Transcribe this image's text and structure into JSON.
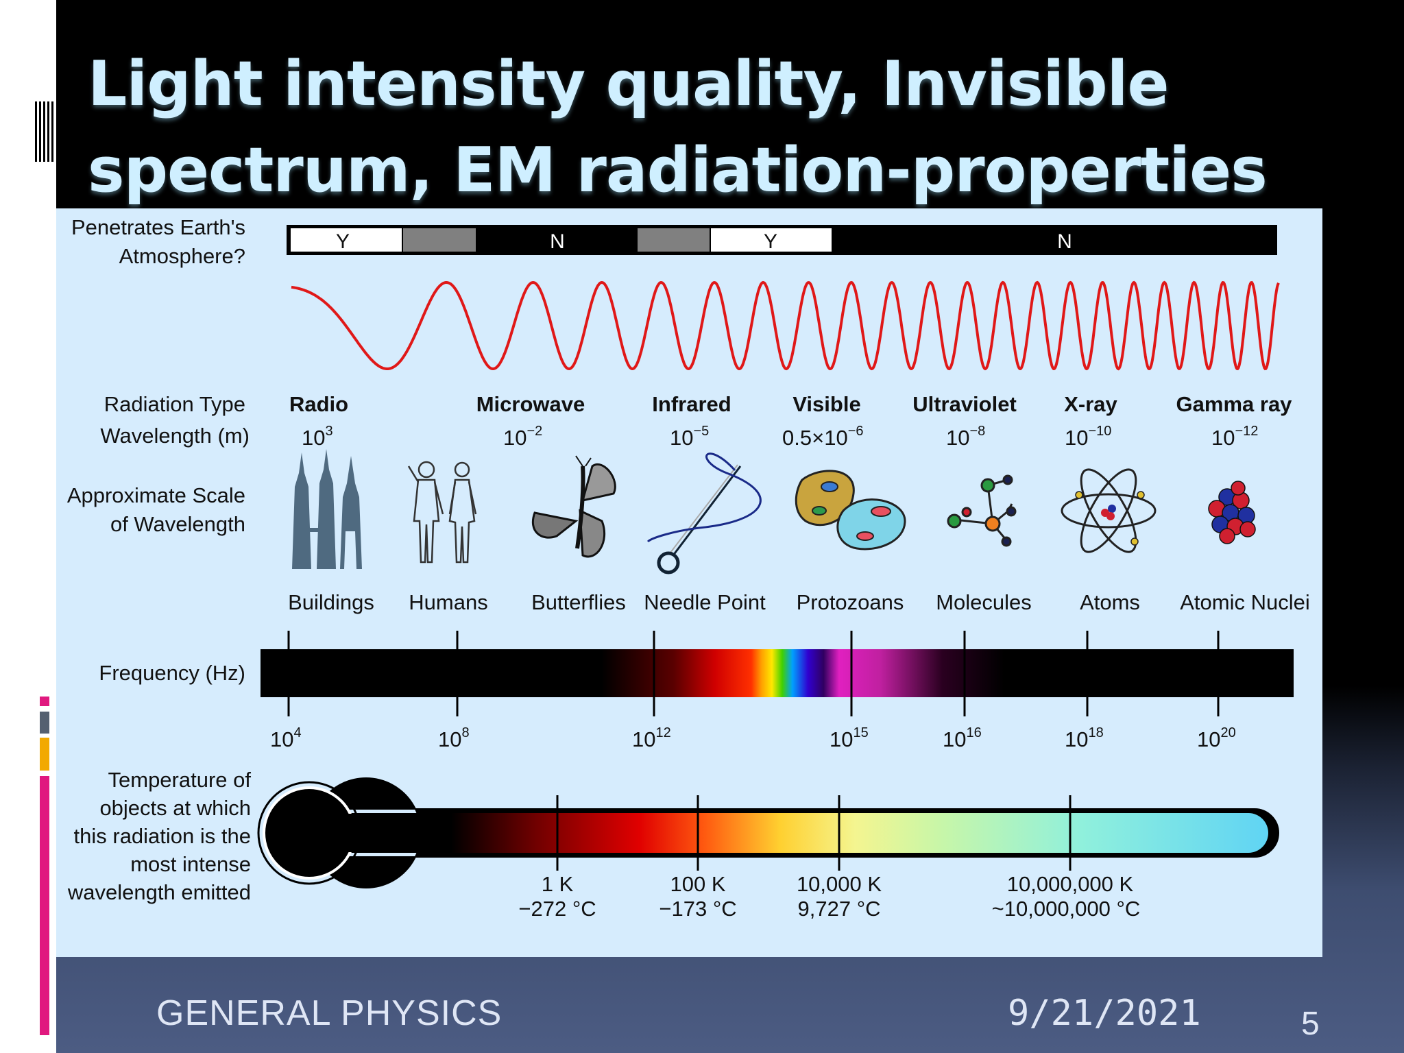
{
  "slide": {
    "title_lines": [
      "Light intensity quality, Invisible",
      "spectrum, EM radiation-properties"
    ],
    "footer": {
      "course": "GENERAL PHYSICS",
      "date": "9/21/2021",
      "page": "5"
    }
  },
  "diagram": {
    "atmosphere_label": [
      "Penetrates Earth's",
      "Atmosphere?"
    ],
    "atmosphere_bar": [
      "Y",
      "N",
      "Y",
      "N"
    ],
    "row_labels": {
      "radiation_type": "Radiation Type",
      "wavelength": "Wavelength (m)",
      "scale": [
        "Approximate Scale",
        "of Wavelength"
      ],
      "frequency": "Frequency (Hz)",
      "temperature": [
        "Temperature of",
        "objects at which",
        "this radiation is the",
        "most intense",
        "wavelength emitted"
      ]
    },
    "radiation_types": [
      {
        "name": "Radio",
        "base": "10",
        "exp": "3"
      },
      {
        "name": "Microwave",
        "base": "10",
        "exp": "−2"
      },
      {
        "name": "Infrared",
        "base": "10",
        "exp": "−5"
      },
      {
        "name": "Visible",
        "base": "0.5×10",
        "exp": "−6"
      },
      {
        "name": "Ultraviolet",
        "base": "10",
        "exp": "−8"
      },
      {
        "name": "X-ray",
        "base": "10",
        "exp": "−10"
      },
      {
        "name": "Gamma ray",
        "base": "10",
        "exp": "−12"
      }
    ],
    "scale_objects": [
      "Buildings",
      "Humans",
      "Butterflies",
      "Needle Point",
      "Protozoans",
      "Molecules",
      "Atoms",
      "Atomic Nuclei"
    ],
    "frequencies": [
      {
        "base": "10",
        "exp": "4"
      },
      {
        "base": "10",
        "exp": "8"
      },
      {
        "base": "10",
        "exp": "12"
      },
      {
        "base": "10",
        "exp": "15"
      },
      {
        "base": "10",
        "exp": "16"
      },
      {
        "base": "10",
        "exp": "18"
      },
      {
        "base": "10",
        "exp": "20"
      }
    ],
    "temperatures": [
      {
        "k": "1 K",
        "c": "−272 °C"
      },
      {
        "k": "100 K",
        "c": "−173 °C"
      },
      {
        "k": "10,000 K",
        "c": "9,727 °C"
      },
      {
        "k": "10,000,000 K",
        "c": "~10,000,000 °C"
      }
    ]
  }
}
